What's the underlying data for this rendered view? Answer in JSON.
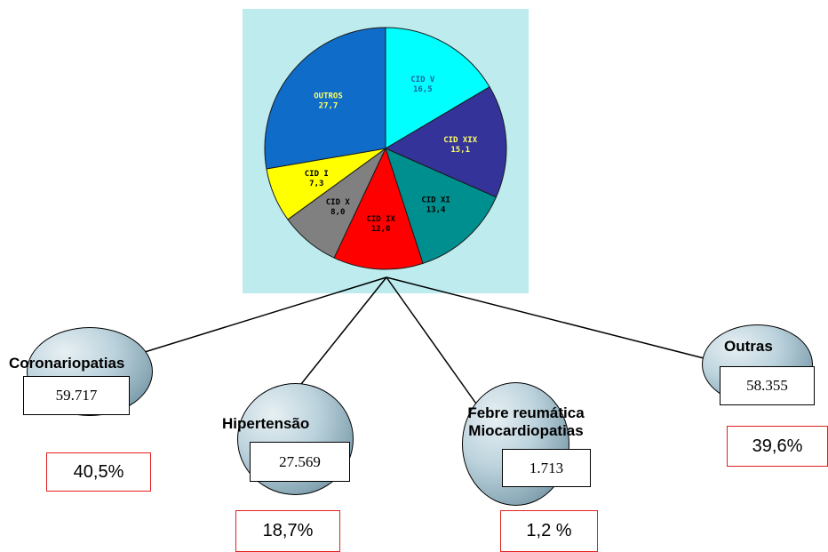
{
  "chart_data": {
    "type": "pie",
    "slices": [
      {
        "label": "CID V",
        "value": 16.5,
        "value_text": "16,5",
        "color": "#00ffff",
        "text_color": "#2060a0"
      },
      {
        "label": "CID XIX",
        "value": 15.1,
        "value_text": "15,1",
        "color": "#333399",
        "text_color": "#ffff66"
      },
      {
        "label": "CID XI",
        "value": 13.4,
        "value_text": "13,4",
        "color": "#008f8f",
        "text_color": "#000000"
      },
      {
        "label": "CID IX",
        "value": 12.0,
        "value_text": "12,0",
        "color": "#ff0000",
        "text_color": "#000000"
      },
      {
        "label": "CID X",
        "value": 8.0,
        "value_text": "8,0",
        "color": "#808080",
        "text_color": "#000000"
      },
      {
        "label": "CID I",
        "value": 7.3,
        "value_text": "7,3",
        "color": "#ffff00",
        "text_color": "#000000"
      },
      {
        "label": "OUTROS",
        "value": 27.7,
        "value_text": "27,7",
        "color": "#0f6cc8",
        "text_color": "#ffff66"
      }
    ],
    "background_color": "#bdebee"
  },
  "categories": [
    {
      "name": "Coronariopatias",
      "count": "59.717",
      "percent": "40,5%"
    },
    {
      "name": "Hipertensão",
      "count": "27.569",
      "percent": "18,7%"
    },
    {
      "name": "Febre reumática",
      "name_line2": "Miocardiopatias",
      "count": "1.713",
      "percent": "1,2 %"
    },
    {
      "name": "Outras",
      "count": "58.355",
      "percent": "39,6%"
    }
  ]
}
